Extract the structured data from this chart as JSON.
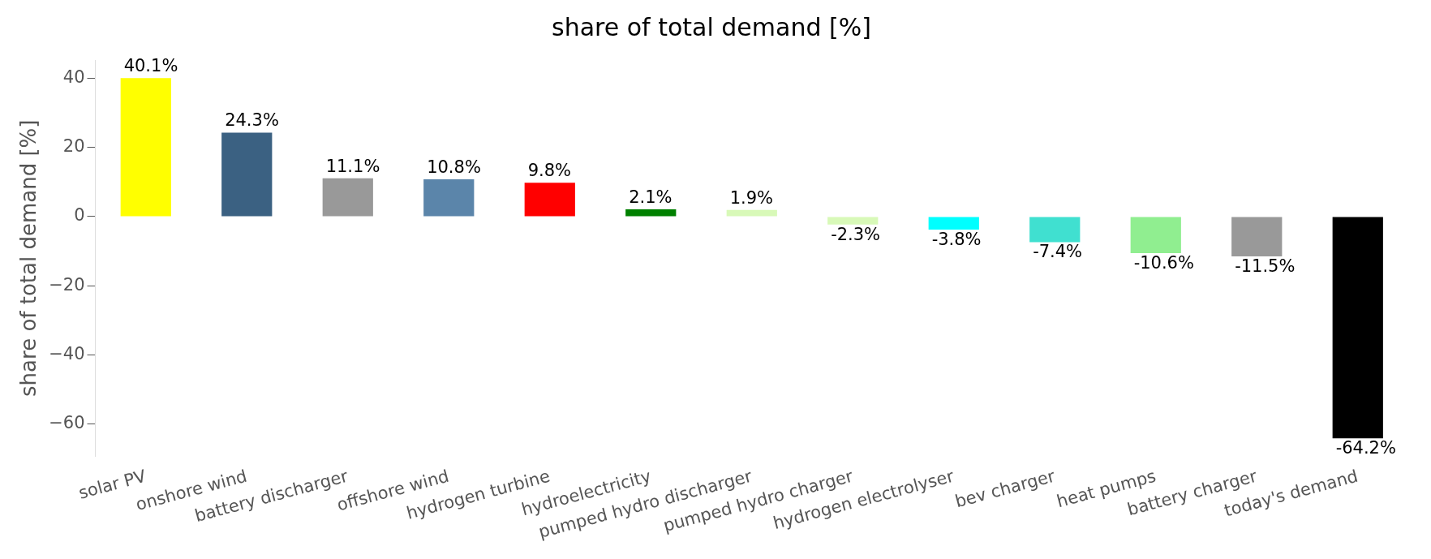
{
  "chart_data": {
    "type": "bar",
    "title": "share of total demand [%]",
    "ylabel": "share of total demand [%]",
    "categories": [
      "solar PV",
      "onshore wind",
      "battery discharger",
      "offshore wind",
      "hydrogen turbine",
      "hydroelectricity",
      "pumped hydro discharger",
      "pumped hydro charger",
      "hydrogen electrolyser",
      "bev charger",
      "heat pumps",
      "battery charger",
      "today's demand"
    ],
    "values": [
      40.1,
      24.3,
      11.1,
      10.8,
      9.8,
      2.1,
      1.9,
      -2.3,
      -3.8,
      -7.4,
      -10.6,
      -11.5,
      -64.2
    ],
    "colors": [
      "#ffff00",
      "#3b6182",
      "#999999",
      "#5b85aa",
      "#ff0000",
      "#008000",
      "#d8f9b8",
      "#d8f9b8",
      "#00ffff",
      "#40e0d0",
      "#90ee90",
      "#999999",
      "#000000"
    ],
    "value_labels": [
      "40.1%",
      "24.3%",
      "11.1%",
      "10.8%",
      "9.8%",
      "2.1%",
      "1.9%",
      "-2.3%",
      "-3.8%",
      "-7.4%",
      "-10.6%",
      "-11.5%",
      "-64.2%"
    ],
    "ylim": [
      -69.4,
      45.3
    ],
    "yticks": [
      -60,
      -40,
      -20,
      0,
      20,
      40
    ],
    "grid": false,
    "legend": false
  }
}
